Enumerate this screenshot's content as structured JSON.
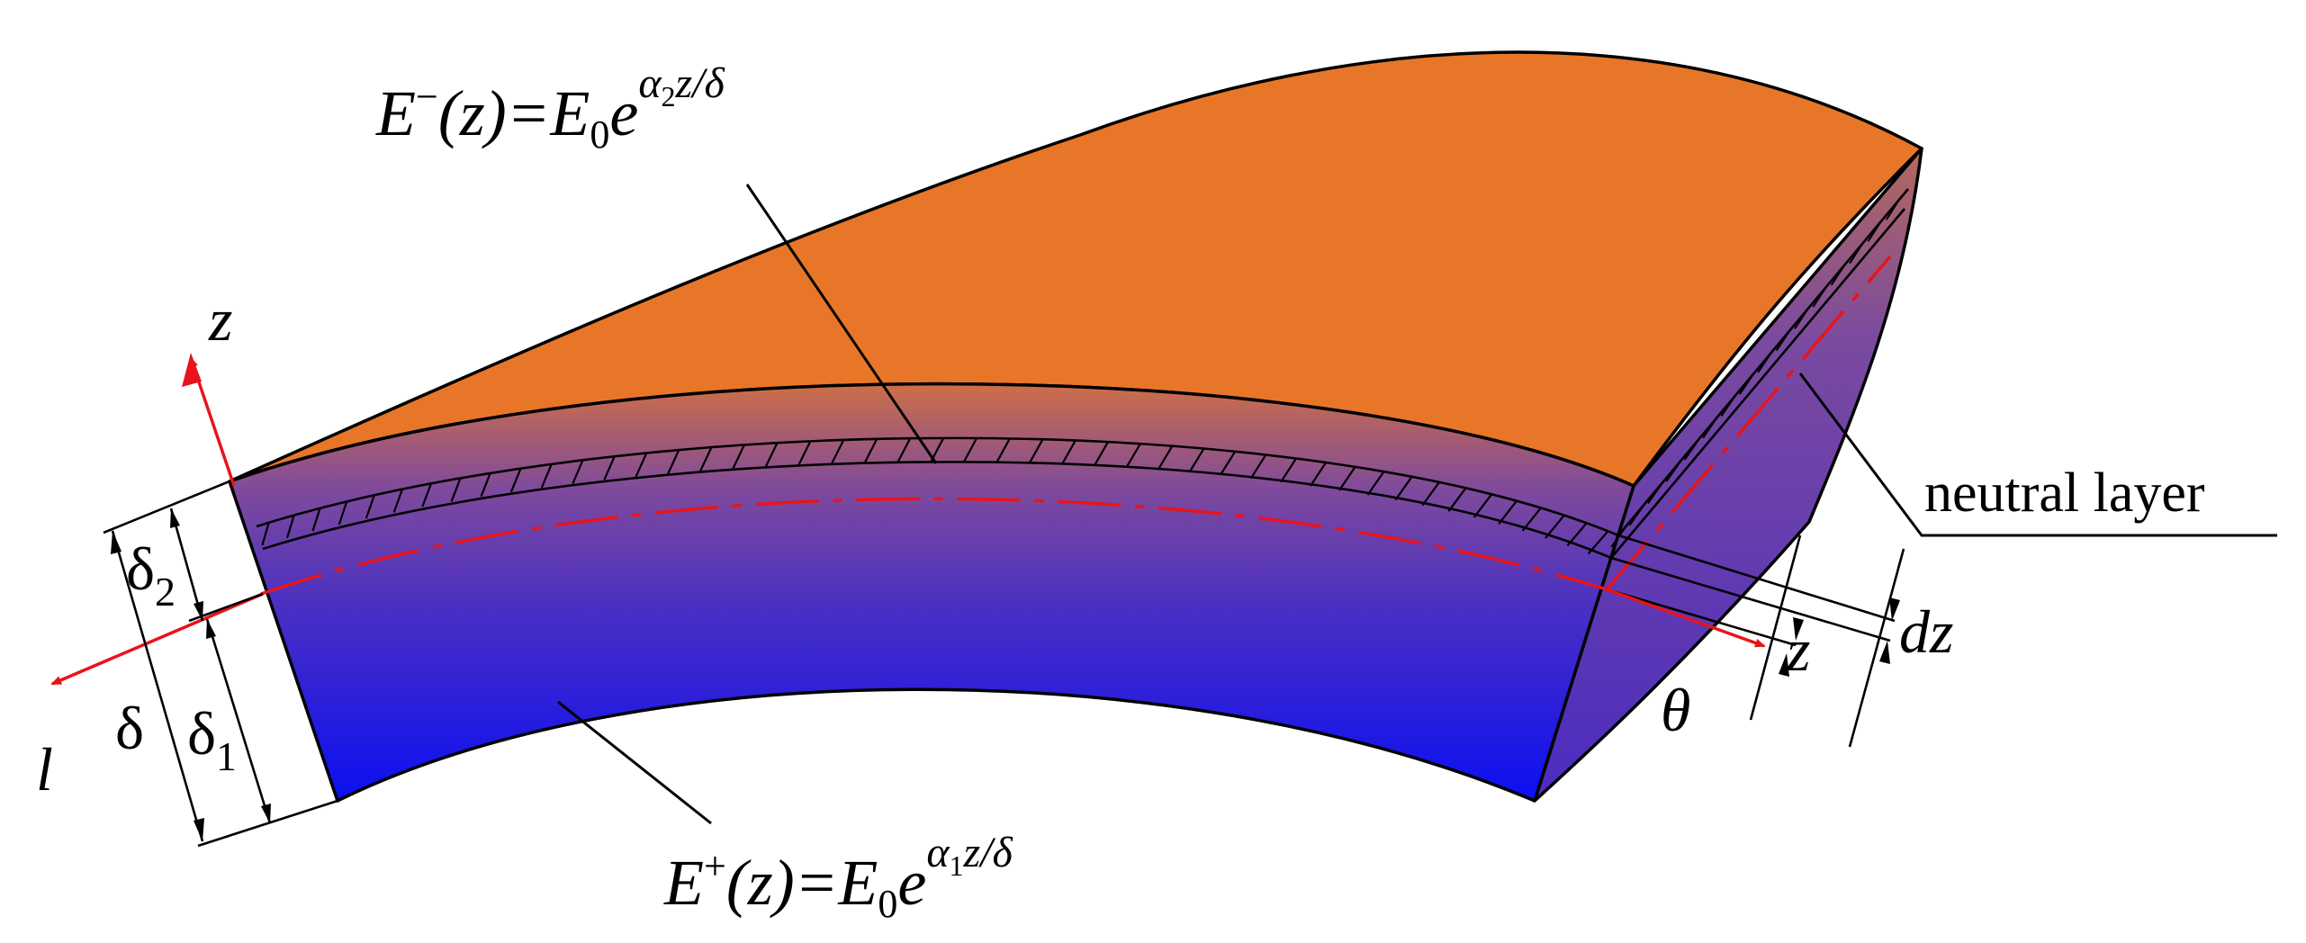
{
  "formulas": {
    "upper": {
      "E": "E",
      "sup": "−",
      "arg": "(z)=E",
      "sub0": "0",
      "e": "e",
      "exp_alpha": "α",
      "exp_sub": "2",
      "exp_rest": "z/δ"
    },
    "lower": {
      "E": "E",
      "sup": "+",
      "arg": "(z)=E",
      "sub0": "0",
      "e": "e",
      "exp_alpha": "α",
      "exp_sub": "1",
      "exp_rest": "z/δ"
    }
  },
  "labels": {
    "z_axis": "z",
    "l_axis": "l",
    "delta": "δ",
    "delta1": "δ",
    "delta1_sub": "1",
    "delta2": "δ",
    "delta2_sub": "2",
    "theta": "θ",
    "z_pos": "z",
    "dz": "dz",
    "neutral_layer": "neutral layer"
  },
  "colors": {
    "top_face": "#e87628",
    "gradient_top": "#d9743a",
    "gradient_mid": "#6a3ba8",
    "gradient_bottom": "#0b0ff2",
    "axis_red": "#e8141b",
    "line": "#000000"
  }
}
